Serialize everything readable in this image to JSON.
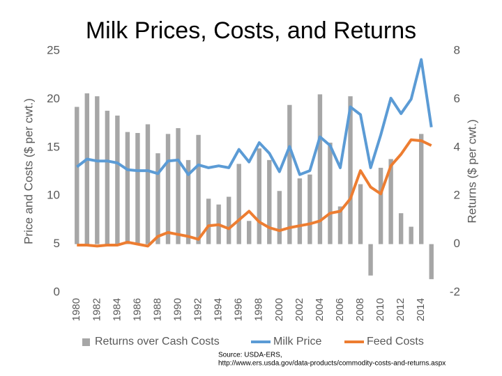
{
  "chart_data": {
    "type": "bar-line",
    "title": "Milk Prices, Costs, and Returns",
    "y_label": "Price and Costs ($ per cwt.)",
    "y2_label": "Returns ($ per cwt.)",
    "categories": [
      "1980",
      null,
      "1982",
      null,
      "1984",
      null,
      "1986",
      null,
      "1988",
      null,
      "1990",
      null,
      "1992",
      null,
      "1994",
      null,
      "1996",
      null,
      "1998",
      null,
      "2000",
      null,
      "2002",
      null,
      "2004",
      null,
      "2006",
      null,
      "2008",
      null,
      "2010",
      null,
      "2012",
      null,
      "2014",
      null
    ],
    "series": [
      {
        "name": "Returns over Cash Costs",
        "type": "bar",
        "axis": "y2",
        "color": "#a6a6a6",
        "values": [
          5.68,
          6.24,
          6.12,
          5.52,
          5.32,
          4.64,
          4.6,
          4.96,
          3.76,
          4.56,
          4.8,
          3.48,
          4.52,
          1.88,
          1.64,
          1.96,
          3.32,
          0.96,
          3.96,
          3.48,
          2.2,
          5.76,
          2.72,
          2.88,
          6.2,
          4.2,
          1.56,
          6.12,
          2.48,
          -1.3,
          3.16,
          3.52,
          1.28,
          0.72,
          4.56,
          -1.45
        ]
      },
      {
        "name": "Milk Price",
        "type": "line",
        "axis": "y",
        "color": "#5b9bd5",
        "values": [
          13.0,
          13.8,
          13.6,
          13.6,
          13.4,
          12.7,
          12.6,
          12.6,
          12.3,
          13.6,
          13.7,
          12.2,
          13.2,
          12.9,
          13.1,
          12.9,
          14.8,
          13.5,
          15.5,
          14.4,
          12.5,
          15.1,
          12.2,
          12.6,
          16.1,
          15.2,
          12.9,
          19.2,
          18.4,
          12.9,
          16.3,
          20.1,
          18.5,
          20.0,
          24.1,
          17.1
        ]
      },
      {
        "name": "Feed Costs",
        "type": "line",
        "axis": "y",
        "color": "#ed7d31",
        "values": [
          4.9,
          4.9,
          4.8,
          4.9,
          4.9,
          5.2,
          5.0,
          4.8,
          5.8,
          6.2,
          6.0,
          5.8,
          5.5,
          6.9,
          7.0,
          6.6,
          7.5,
          8.4,
          7.3,
          6.7,
          6.4,
          6.7,
          6.9,
          7.1,
          7.4,
          8.2,
          8.4,
          9.7,
          12.6,
          10.9,
          10.2,
          13.1,
          14.3,
          15.8,
          15.7,
          15.2
        ]
      }
    ],
    "ylim": [
      0,
      25
    ],
    "yticks": [
      0,
      5,
      10,
      15,
      20,
      25
    ],
    "y2lim": [
      -2,
      8
    ],
    "y2ticks": [
      -2,
      0,
      2,
      4,
      6,
      8
    ],
    "grid": false,
    "legend": "bottom",
    "source": [
      "Source: USDA-ERS,",
      "http://www.ers.usda.gov/data-products/commodity-costs-and-returns.aspx"
    ]
  }
}
